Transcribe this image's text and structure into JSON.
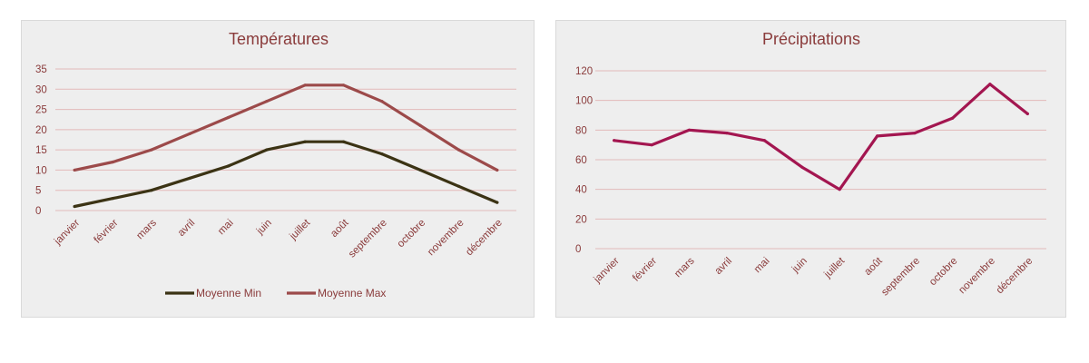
{
  "chart_data": [
    {
      "type": "line",
      "title": "Températures",
      "categories": [
        "janvier",
        "février",
        "mars",
        "avril",
        "mai",
        "juin",
        "juillet",
        "août",
        "septembre",
        "octobre",
        "novembre",
        "décembre"
      ],
      "yticks": [
        0,
        5,
        10,
        15,
        20,
        25,
        30,
        35
      ],
      "ylim": [
        0,
        35
      ],
      "grid": true,
      "legend": "bottom",
      "series": [
        {
          "name": "Moyenne Min",
          "color": "#3b3314",
          "values": [
            1,
            3,
            5,
            8,
            11,
            15,
            17,
            17,
            14,
            10,
            6,
            2
          ]
        },
        {
          "name": "Moyenne Max",
          "color": "#9c4a4a",
          "values": [
            10,
            12,
            15,
            19,
            23,
            27,
            31,
            31,
            27,
            21,
            15,
            10
          ]
        }
      ]
    },
    {
      "type": "line",
      "title": "Précipitations",
      "categories": [
        "janvier",
        "février",
        "mars",
        "avril",
        "mai",
        "juin",
        "juillet",
        "août",
        "septembre",
        "octobre",
        "novembre",
        "décembre"
      ],
      "yticks": [
        0,
        20,
        40,
        60,
        80,
        100,
        120
      ],
      "ylim": [
        0,
        120
      ],
      "grid": true,
      "legend": "none",
      "series": [
        {
          "color": "#a31650",
          "values": [
            73,
            70,
            80,
            78,
            73,
            55,
            40,
            76,
            78,
            88,
            111,
            91
          ]
        }
      ]
    }
  ]
}
